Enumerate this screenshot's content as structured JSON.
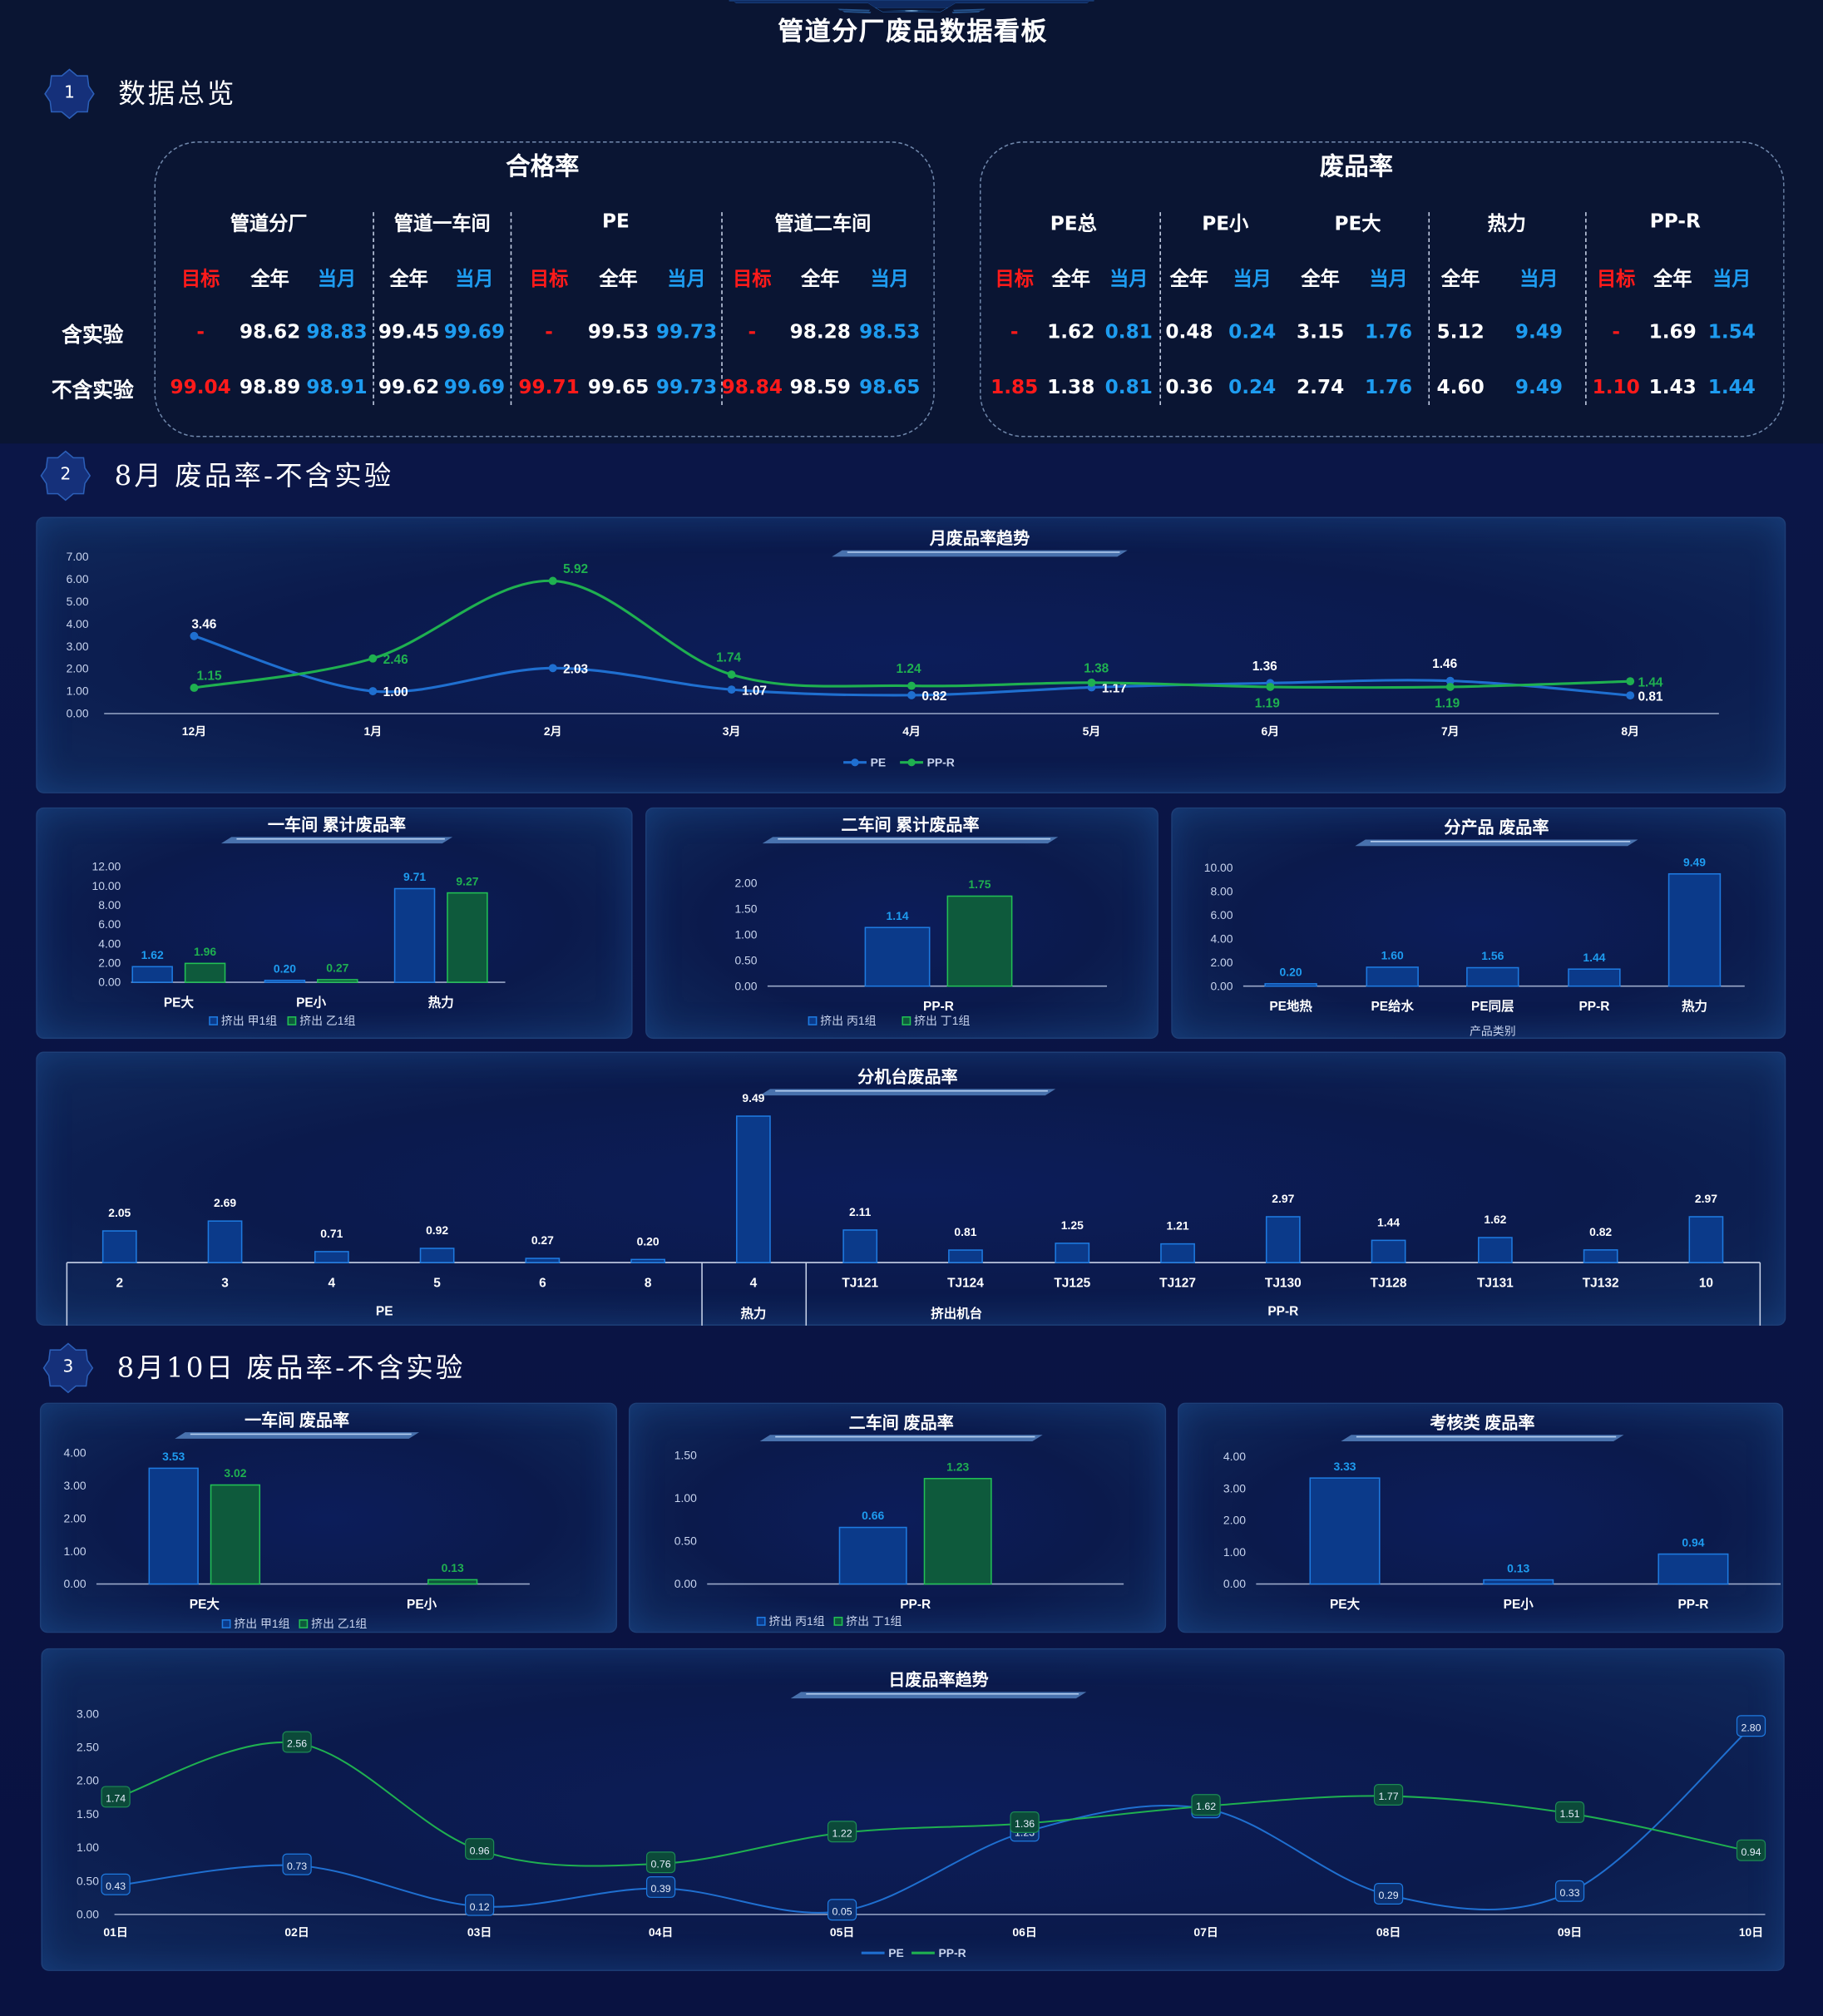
{
  "header": {
    "title": "管道分厂废品数据看板"
  },
  "sections": [
    {
      "num": "1",
      "title": "数据总览"
    },
    {
      "num": "2",
      "title": "8月 废品率-不含实验"
    },
    {
      "num": "3",
      "title": "8月10日 废品率-不含实验"
    }
  ],
  "overview": {
    "pass": {
      "title": "合格率",
      "groups": [
        "管道分厂",
        "管道一车间",
        "PE",
        "管道二车间"
      ],
      "cols": [
        "目标",
        "全年",
        "当月",
        "全年",
        "当月",
        "目标",
        "全年",
        "当月",
        "目标",
        "全年",
        "当月"
      ],
      "rows": [
        {
          "label": "含实验",
          "values": [
            "-",
            "98.62",
            "98.83",
            "99.45",
            "99.69",
            "-",
            "99.53",
            "99.73",
            "-",
            "98.28",
            "98.53"
          ]
        },
        {
          "label": "不含实验",
          "values": [
            "99.04",
            "98.89",
            "98.91",
            "99.62",
            "99.69",
            "99.71",
            "99.65",
            "99.73",
            "98.84",
            "98.59",
            "98.65"
          ]
        }
      ]
    },
    "scrap": {
      "title": "废品率",
      "groups": [
        "PE总",
        "PE小",
        "PE大",
        "热力",
        "PP-R"
      ],
      "cols": [
        "目标",
        "全年",
        "当月",
        "全年",
        "当月",
        "全年",
        "当月",
        "全年",
        "当月",
        "目标",
        "全年",
        "当月"
      ],
      "rows": [
        {
          "label": "含实验",
          "values": [
            "-",
            "1.62",
            "0.81",
            "0.48",
            "0.24",
            "3.15",
            "1.76",
            "5.12",
            "9.49",
            "-",
            "1.69",
            "1.54"
          ]
        },
        {
          "label": "不含实验",
          "values": [
            "1.85",
            "1.38",
            "0.81",
            "0.36",
            "0.24",
            "2.74",
            "1.76",
            "4.60",
            "9.49",
            "1.10",
            "1.43",
            "1.44"
          ]
        }
      ]
    }
  },
  "colors": {
    "pe": "#1f6fd0",
    "ppr": "#1fb050",
    "red": "#ff1a1a",
    "blue": "#1e9cf0",
    "bar_blue_fill": "#0b3a8a",
    "bar_blue_stroke": "#1e7ae0",
    "bar_green_fill": "#0e5a3c",
    "bar_green_stroke": "#22c055"
  },
  "chart_data": [
    {
      "id": "monthly",
      "type": "line",
      "title": "月废品率趋势",
      "categories": [
        "12月",
        "1月",
        "2月",
        "3月",
        "4月",
        "5月",
        "6月",
        "7月",
        "8月"
      ],
      "series": [
        {
          "name": "PE",
          "values": [
            3.46,
            1.0,
            2.03,
            1.07,
            0.82,
            1.17,
            1.36,
            1.46,
            0.81
          ]
        },
        {
          "name": "PP-R",
          "values": [
            1.15,
            2.46,
            5.92,
            1.74,
            1.24,
            1.38,
            1.19,
            1.19,
            1.44
          ]
        }
      ],
      "ylim": [
        0,
        7
      ],
      "yticks": [
        "0.00",
        "1.00",
        "2.00",
        "3.00",
        "4.00",
        "5.00",
        "6.00",
        "7.00"
      ],
      "legend": "bottom"
    },
    {
      "id": "ws1",
      "type": "bar",
      "title": "一车间 累计废品率",
      "categories": [
        "PE大",
        "PE小",
        "热力"
      ],
      "series": [
        {
          "name": "挤出 甲1组",
          "values": [
            1.62,
            0.2,
            9.71
          ]
        },
        {
          "name": "挤出 乙1组",
          "values": [
            1.96,
            0.27,
            9.27
          ]
        }
      ],
      "ylim": [
        0,
        12
      ],
      "yticks": [
        "0.00",
        "2.00",
        "4.00",
        "6.00",
        "8.00",
        "10.00",
        "12.00"
      ],
      "legend": "bottom"
    },
    {
      "id": "ws2",
      "type": "bar",
      "title": "二车间 累计废品率",
      "categories": [
        "PP-R"
      ],
      "series": [
        {
          "name": "挤出 丙1组",
          "values": [
            1.14
          ]
        },
        {
          "name": "挤出 丁1组",
          "values": [
            1.75
          ]
        }
      ],
      "ylim": [
        0,
        2
      ],
      "yticks": [
        "0.00",
        "0.50",
        "1.00",
        "1.50",
        "2.00"
      ],
      "legend": "bottom"
    },
    {
      "id": "prod",
      "type": "bar",
      "title": "分产品 废品率",
      "categories": [
        "PE地热",
        "PE给水",
        "PE同层",
        "PP-R",
        "热力"
      ],
      "series": [
        {
          "values": [
            0.2,
            1.6,
            1.56,
            1.44,
            9.49
          ]
        }
      ],
      "xlabel": "产品类别",
      "ylim": [
        0,
        10
      ],
      "yticks": [
        "0.00",
        "2.00",
        "4.00",
        "6.00",
        "8.00",
        "10.00"
      ]
    },
    {
      "id": "machine",
      "type": "bar",
      "title": "分机台废品率",
      "categories": [
        "2",
        "3",
        "4",
        "5",
        "6",
        "8",
        "4",
        "TJ121",
        "TJ124",
        "TJ125",
        "TJ127",
        "TJ130",
        "TJ128",
        "TJ131",
        "TJ132",
        "10"
      ],
      "series": [
        {
          "values": [
            2.05,
            2.69,
            0.71,
            0.92,
            0.27,
            0.2,
            9.49,
            2.11,
            0.81,
            1.25,
            1.21,
            2.97,
            1.44,
            1.62,
            0.82,
            2.97
          ]
        }
      ],
      "groups": [
        {
          "label": "PE",
          "count": 6
        },
        {
          "label": "热力",
          "count": 1
        },
        {
          "label": "挤出机台",
          "count": 9
        }
      ],
      "sublabel": "PP-R",
      "ylim": [
        0,
        10
      ]
    },
    {
      "id": "d_ws1",
      "type": "bar",
      "title": "一车间 废品率",
      "categories": [
        "PE大",
        "PE小"
      ],
      "series": [
        {
          "name": "挤出 甲1组",
          "values": [
            3.53,
            null
          ]
        },
        {
          "name": "挤出 乙1组",
          "values": [
            3.02,
            0.13
          ]
        }
      ],
      "ylim": [
        0,
        4
      ],
      "yticks": [
        "0.00",
        "1.00",
        "2.00",
        "3.00",
        "4.00"
      ],
      "legend": "bottom"
    },
    {
      "id": "d_ws2",
      "type": "bar",
      "title": "二车间 废品率",
      "categories": [
        "PP-R"
      ],
      "series": [
        {
          "name": "挤出 丙1组",
          "values": [
            0.66
          ]
        },
        {
          "name": "挤出 丁1组",
          "values": [
            1.23
          ]
        }
      ],
      "ylim": [
        0,
        1.5
      ],
      "yticks": [
        "0.00",
        "0.50",
        "1.00",
        "1.50"
      ],
      "legend": "bottom"
    },
    {
      "id": "d_check",
      "type": "bar",
      "title": "考核类 废品率",
      "categories": [
        "PE大",
        "PE小",
        "PP-R"
      ],
      "series": [
        {
          "values": [
            3.33,
            0.13,
            0.94
          ]
        }
      ],
      "ylim": [
        0,
        4
      ],
      "yticks": [
        "0.00",
        "1.00",
        "2.00",
        "3.00",
        "4.00"
      ]
    },
    {
      "id": "daily",
      "type": "line",
      "title": "日废品率趋势",
      "categories": [
        "01日",
        "02日",
        "03日",
        "04日",
        "05日",
        "06日",
        "07日",
        "08日",
        "09日",
        "10日"
      ],
      "series": [
        {
          "name": "PE",
          "values": [
            0.43,
            0.73,
            0.12,
            0.39,
            0.05,
            1.23,
            1.58,
            0.29,
            0.33,
            2.8
          ]
        },
        {
          "name": "PP-R",
          "values": [
            1.74,
            2.56,
            0.96,
            0.76,
            1.22,
            1.36,
            1.62,
            1.77,
            1.51,
            0.94
          ]
        }
      ],
      "ylim": [
        0,
        3
      ],
      "yticks": [
        "0.00",
        "0.50",
        "1.00",
        "1.50",
        "2.00",
        "2.50",
        "3.00"
      ],
      "legend": "bottom"
    }
  ]
}
